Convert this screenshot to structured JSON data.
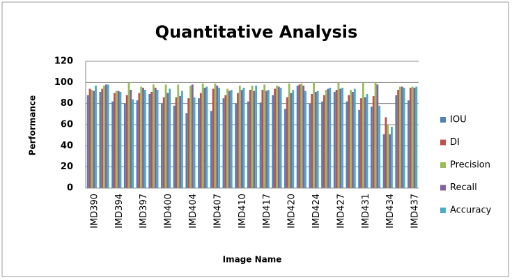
{
  "chart_data": {
    "type": "bar",
    "title": "Quantitative Analysis",
    "x_label": "Image Name",
    "y_label": "Performance",
    "categories": [
      "IMD390",
      null,
      "IMD394",
      null,
      "IMD397",
      null,
      "IMD400",
      null,
      "IMD404",
      null,
      "IMD407",
      null,
      "IMD410",
      null,
      "IMD417",
      null,
      "IMD420",
      null,
      "IMD424",
      null,
      "IMD427",
      null,
      "IMD431",
      null,
      "IMD434",
      null,
      "IMD437"
    ],
    "series": [
      {
        "name": "IOU",
        "color": "#4f81bd",
        "values": [
          88,
          91,
          82,
          80,
          83,
          89,
          80,
          78,
          71,
          85,
          73,
          85,
          80,
          82,
          81,
          88,
          75,
          97,
          80,
          82,
          91,
          82,
          74,
          77,
          51,
          88,
          83
        ]
      },
      {
        "name": "DI",
        "color": "#c0504d",
        "values": [
          94,
          94,
          90,
          88,
          90,
          91,
          86,
          86,
          85,
          90,
          94,
          88,
          90,
          93,
          93,
          94,
          86,
          98,
          89,
          88,
          93,
          88,
          85,
          87,
          67,
          93,
          95
        ]
      },
      {
        "name": "Precision",
        "color": "#9bbb59",
        "values": [
          93,
          97,
          92,
          100,
          96,
          98,
          98,
          98,
          97,
          99,
          99,
          94,
          97,
          97,
          98,
          97,
          99,
          99,
          100,
          93,
          100,
          93,
          100,
          100,
          60,
          96,
          96
        ]
      },
      {
        "name": "Recall",
        "color": "#8064a2",
        "values": [
          92,
          98,
          92,
          93,
          95,
          95,
          90,
          87,
          98,
          95,
          97,
          92,
          93,
          92,
          92,
          96,
          90,
          97,
          91,
          94,
          94,
          91,
          86,
          98,
          51,
          96,
          95
        ]
      },
      {
        "name": "Accuracy",
        "color": "#4bacc6",
        "values": [
          97,
          98,
          91,
          84,
          93,
          93,
          94,
          92,
          86,
          96,
          95,
          93,
          95,
          97,
          93,
          95,
          93,
          92,
          92,
          95,
          95,
          94,
          89,
          78,
          58,
          95,
          96
        ]
      }
    ],
    "ylim": [
      0,
      120
    ],
    "yticks": [
      0,
      20,
      40,
      60,
      80,
      100,
      120
    ],
    "grid": true,
    "legend": "right"
  }
}
